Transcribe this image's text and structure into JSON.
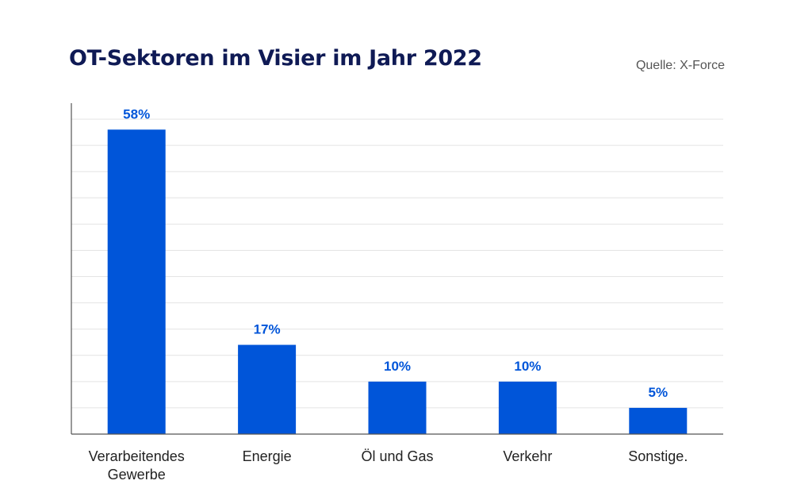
{
  "title": "OT-Sektoren im Visier im Jahr 2022",
  "source": "Quelle: X-Force",
  "colors": {
    "bar": "#0055d9",
    "label": "#0055d9",
    "grid": "#e4e4e4",
    "axis": "#555555",
    "title": "#0f1a55"
  },
  "chart_data": {
    "type": "bar",
    "title": "OT-Sektoren im Visier im Jahr 2022",
    "xlabel": "",
    "ylabel": "",
    "ylim": [
      0,
      65
    ],
    "grid": true,
    "categories": [
      [
        "Verarbeitendes",
        "Gewerbe"
      ],
      [
        "Energie"
      ],
      [
        "Öl und Gas"
      ],
      [
        "Verkehr"
      ],
      [
        "Sonstige."
      ]
    ],
    "values": [
      58,
      17,
      10,
      10,
      5
    ],
    "value_labels": [
      "58%",
      "17%",
      "10%",
      "10%",
      "5%"
    ],
    "unit": "%"
  }
}
